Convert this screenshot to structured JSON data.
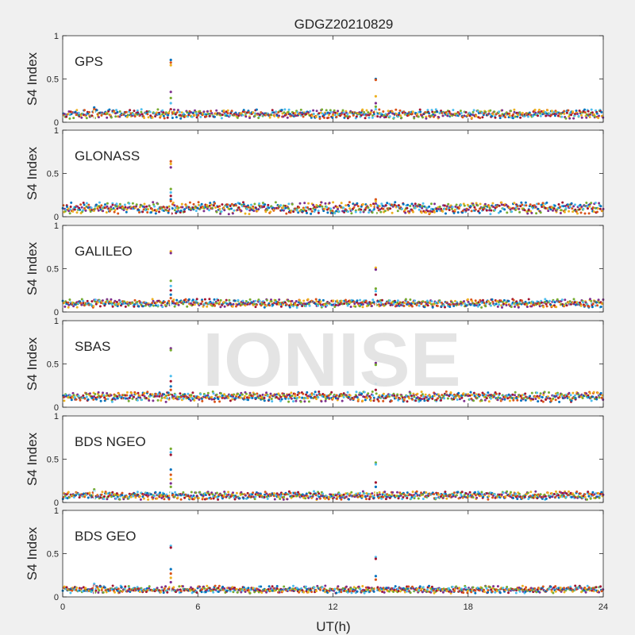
{
  "figure": {
    "title": "GDGZ20210829",
    "xlabel": "UT(h)",
    "watermark": "IONISE",
    "background": "#f0f0f0",
    "axes_background": "#ffffff",
    "palette": [
      "#0072BD",
      "#D95319",
      "#EDB120",
      "#7E2F8E",
      "#77AC30",
      "#4DBEEE",
      "#A2142F"
    ]
  },
  "chart_data": {
    "type": "scatter",
    "title": "GDGZ20210829",
    "xlabel": "UT(h)",
    "xlim": [
      0,
      24
    ],
    "xticks": [
      0,
      6,
      12,
      18,
      24
    ],
    "grid": false,
    "panels": [
      {
        "label": "GPS",
        "ylabel": "S4 Index",
        "ylim": [
          0,
          1
        ],
        "yticks": [
          "0",
          "0.5",
          "1"
        ],
        "baseline_range": [
          0.04,
          0.15
        ],
        "spikes": [
          {
            "x": 4.8,
            "values": [
              0.72,
              0.69,
              0.66,
              0.35,
              0.28,
              0.22,
              0.15
            ]
          },
          {
            "x": 1.4,
            "values": [
              0.17,
              0.15,
              0.13
            ]
          },
          {
            "x": 13.9,
            "values": [
              0.5,
              0.49,
              0.3,
              0.22,
              0.18,
              0.15
            ]
          }
        ]
      },
      {
        "label": "GLONASS",
        "ylabel": "S4 Index",
        "ylim": [
          0,
          1
        ],
        "yticks": [
          "0",
          "0.5",
          "1"
        ],
        "baseline_range": [
          0.03,
          0.17
        ],
        "spikes": [
          {
            "x": 4.8,
            "values": [
              0.64,
              0.61,
              0.57,
              0.32,
              0.28,
              0.24,
              0.2,
              0.18
            ]
          },
          {
            "x": 13.9,
            "values": [
              0.2,
              0.18,
              0.15
            ]
          }
        ]
      },
      {
        "label": "GALILEO",
        "ylabel": "S4 Index",
        "ylim": [
          0,
          1
        ],
        "yticks": [
          "0",
          "0.5",
          "1"
        ],
        "baseline_range": [
          0.05,
          0.15
        ],
        "spikes": [
          {
            "x": 4.8,
            "values": [
              0.7,
              0.68,
              0.36,
              0.3,
              0.25,
              0.2,
              0.16
            ]
          },
          {
            "x": 13.9,
            "values": [
              0.51,
              0.49,
              0.27,
              0.24,
              0.2
            ]
          }
        ]
      },
      {
        "label": "SBAS",
        "ylabel": "S4 Index",
        "ylim": [
          0,
          1
        ],
        "yticks": [
          "0",
          "0.5",
          "1"
        ],
        "baseline_range": [
          0.06,
          0.18
        ],
        "spikes": [
          {
            "x": 4.8,
            "values": [
              0.68,
              0.66,
              0.36,
              0.3,
              0.24,
              0.2
            ]
          },
          {
            "x": 13.9,
            "values": [
              0.51,
              0.49,
              0.27,
              0.2
            ]
          }
        ]
      },
      {
        "label": "BDS NGEO",
        "ylabel": "S4 Index",
        "ylim": [
          0,
          1
        ],
        "yticks": [
          "0",
          "0.5",
          "1"
        ],
        "baseline_range": [
          0.03,
          0.13
        ],
        "spikes": [
          {
            "x": 4.8,
            "values": [
              0.62,
              0.58,
              0.55,
              0.38,
              0.32,
              0.27,
              0.22,
              0.18
            ]
          },
          {
            "x": 1.4,
            "values": [
              0.15,
              0.13
            ]
          },
          {
            "x": 13.9,
            "values": [
              0.46,
              0.44,
              0.23,
              0.18
            ]
          }
        ]
      },
      {
        "label": "BDS GEO",
        "ylabel": "S4 Index",
        "ylim": [
          0,
          1
        ],
        "yticks": [
          "0",
          "0.5",
          "1"
        ],
        "baseline_range": [
          0.04,
          0.13
        ],
        "spikes": [
          {
            "x": 4.8,
            "values": [
              0.59,
              0.57,
              0.32,
              0.27,
              0.22,
              0.17
            ]
          },
          {
            "x": 1.4,
            "values": [
              0.15,
              0.13
            ]
          },
          {
            "x": 13.9,
            "values": [
              0.46,
              0.44,
              0.24,
              0.2
            ]
          }
        ]
      }
    ]
  }
}
